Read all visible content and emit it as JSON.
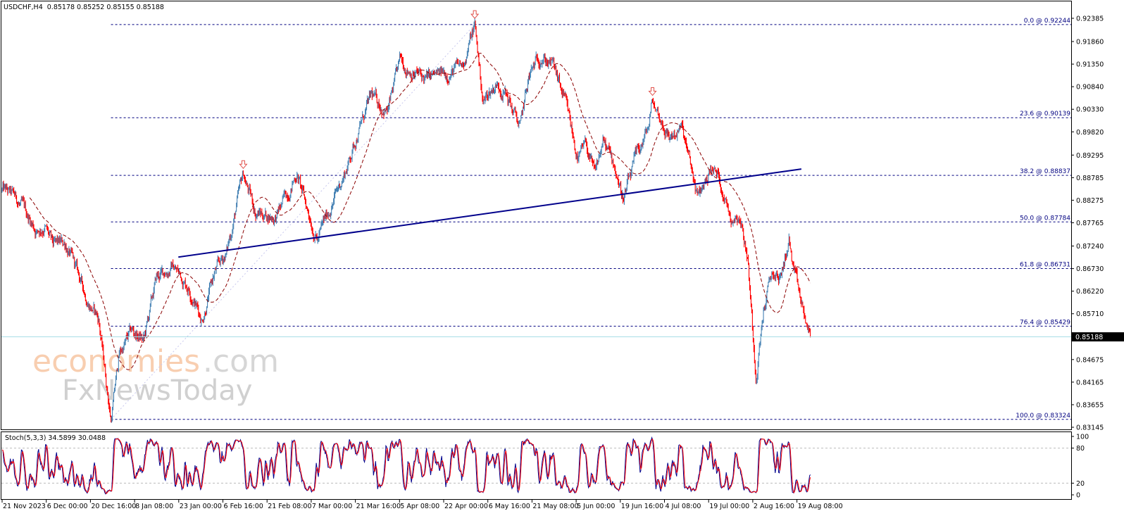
{
  "header": {
    "symbol": "USDCHF,H4",
    "ohlc": "0.85178 0.85252 0.85155 0.85188"
  },
  "watermark": {
    "line1": "economies",
    "line1_suffix": ".com",
    "line2": "FxNewsToday"
  },
  "colors": {
    "up_candle": "#4682b4",
    "down_candle": "#ff0000",
    "moving_average": "#8b0000",
    "fib_lines": "#000080",
    "trendline": "#00008b",
    "current_price_line": "#a8dde6",
    "stoch_main": "#00008b",
    "stoch_signal": "#ff0000",
    "fractal_arrow": "#e0504a"
  },
  "chart_data": [
    {
      "type": "candlestick",
      "title": "USDCHF,H4",
      "timeframe": "H4",
      "last_price": 0.85188,
      "last_price_label": "0.85188",
      "ylim": [
        0.83145,
        0.92385
      ],
      "y_ticks": [
        "0.92385",
        "0.91860",
        "0.91350",
        "0.90840",
        "0.90330",
        "0.89820",
        "0.89295",
        "0.88785",
        "0.88275",
        "0.87765",
        "0.87240",
        "0.86730",
        "0.86220",
        "0.85710",
        "0.84675",
        "0.84165",
        "0.83655",
        "0.83145"
      ],
      "x_ticks": [
        "21 Nov 2023",
        "6 Dec 00:00",
        "20 Dec 16:00",
        "8 Jan 08:00",
        "23 Jan 00:00",
        "6 Feb 16:00",
        "21 Feb 08:00",
        "7 Mar 00:00",
        "21 Mar 16:00",
        "5 Apr 08:00",
        "22 Apr 00:00",
        "6 May 16:00",
        "21 May 08:00",
        "5 Jun 00:00",
        "19 Jun 16:00",
        "4 Jul 08:00",
        "19 Jul 00:00",
        "2 Aug 16:00",
        "19 Aug 08:00"
      ],
      "price_path": [
        [
          "2023-11-21",
          0.885
        ],
        [
          "2023-11-24",
          0.883
        ],
        [
          "2023-11-29",
          0.879
        ],
        [
          "2023-12-01",
          0.876
        ],
        [
          "2023-12-05",
          0.877
        ],
        [
          "2023-12-07",
          0.872
        ],
        [
          "2023-12-12",
          0.873
        ],
        [
          "2023-12-15",
          0.866
        ],
        [
          "2023-12-19",
          0.861
        ],
        [
          "2023-12-22",
          0.856
        ],
        [
          "2023-12-28",
          0.8332
        ],
        [
          "2024-01-02",
          0.848
        ],
        [
          "2024-01-05",
          0.853
        ],
        [
          "2024-01-10",
          0.851
        ],
        [
          "2024-01-15",
          0.865
        ],
        [
          "2024-01-19",
          0.868
        ],
        [
          "2024-01-25",
          0.863
        ],
        [
          "2024-01-30",
          0.856
        ],
        [
          "2024-02-02",
          0.866
        ],
        [
          "2024-02-07",
          0.871
        ],
        [
          "2024-02-13",
          0.8885
        ],
        [
          "2024-02-16",
          0.88
        ],
        [
          "2024-02-23",
          0.879
        ],
        [
          "2024-03-01",
          0.889
        ],
        [
          "2024-03-05",
          0.882
        ],
        [
          "2024-03-08",
          0.874
        ],
        [
          "2024-03-13",
          0.881
        ],
        [
          "2024-03-19",
          0.89
        ],
        [
          "2024-03-22",
          0.899
        ],
        [
          "2024-03-27",
          0.906
        ],
        [
          "2024-04-02",
          0.903
        ],
        [
          "2024-04-05",
          0.914
        ],
        [
          "2024-04-10",
          0.912
        ],
        [
          "2024-04-15",
          0.91
        ],
        [
          "2024-04-19",
          0.911
        ],
        [
          "2024-04-26",
          0.913
        ],
        [
          "2024-05-01",
          0.9224
        ],
        [
          "2024-05-03",
          0.905
        ],
        [
          "2024-05-08",
          0.909
        ],
        [
          "2024-05-10",
          0.908
        ],
        [
          "2024-05-16",
          0.899
        ],
        [
          "2024-05-20",
          0.91
        ],
        [
          "2024-05-23",
          0.916
        ],
        [
          "2024-05-28",
          0.913
        ],
        [
          "2024-05-31",
          0.904
        ],
        [
          "2024-06-05",
          0.892
        ],
        [
          "2024-06-07",
          0.895
        ],
        [
          "2024-06-11",
          0.888
        ],
        [
          "2024-06-13",
          0.896
        ],
        [
          "2024-06-18",
          0.89
        ],
        [
          "2024-06-20",
          0.883
        ],
        [
          "2024-06-25",
          0.892
        ],
        [
          "2024-06-28",
          0.899
        ],
        [
          "2024-07-01",
          0.905
        ],
        [
          "2024-07-05",
          0.897
        ],
        [
          "2024-07-10",
          0.899
        ],
        [
          "2024-07-16",
          0.883
        ],
        [
          "2024-07-19",
          0.89
        ],
        [
          "2024-07-23",
          0.888
        ],
        [
          "2024-07-26",
          0.879
        ],
        [
          "2024-07-30",
          0.88
        ],
        [
          "2024-08-01",
          0.87
        ],
        [
          "2024-08-05",
          0.8435
        ],
        [
          "2024-08-07",
          0.859
        ],
        [
          "2024-08-09",
          0.866
        ],
        [
          "2024-08-13",
          0.865
        ],
        [
          "2024-08-15",
          0.874
        ],
        [
          "2024-08-16",
          0.867
        ],
        [
          "2024-08-20",
          0.859
        ],
        [
          "2024-08-22",
          0.8519
        ]
      ],
      "moving_average": {
        "style": "dashed"
      },
      "fibonacci": {
        "anchor_low": [
          "2023-12-28",
          0.83324
        ],
        "anchor_high": [
          "2024-05-01",
          0.92244
        ],
        "levels": [
          {
            "label": "0.0 @ 0.92244",
            "price": 0.92244
          },
          {
            "label": "23.6 @ 0.90139",
            "price": 0.90139
          },
          {
            "label": "38.2 @ 0.88837",
            "price": 0.88837
          },
          {
            "label": "50.0 @ 0.87784",
            "price": 0.87784
          },
          {
            "label": "61.8 @ 0.86731",
            "price": 0.86731
          },
          {
            "label": "76.4 @ 0.85429",
            "price": 0.85429
          },
          {
            "label": "100.0 @ 0.83324",
            "price": 0.83324
          }
        ]
      },
      "trendline": {
        "start": [
          "2024-01-24",
          0.8699
        ],
        "end": [
          "2024-08-20",
          0.8898
        ]
      },
      "fractal_markers": [
        [
          "2024-02-13",
          0.8885
        ],
        [
          "2024-05-01",
          0.9224
        ],
        [
          "2024-07-01",
          0.905
        ]
      ]
    },
    {
      "type": "line",
      "title": "Stoch(5,3,3) 34.5899 30.0488",
      "indicator": "Stoch(5,3,3)",
      "main_value": 34.5899,
      "signal_value": 30.0488,
      "ylim": [
        0,
        100
      ],
      "y_ticks": [
        "100",
        "80",
        "20",
        "0"
      ],
      "levels": [
        20,
        80
      ]
    }
  ]
}
